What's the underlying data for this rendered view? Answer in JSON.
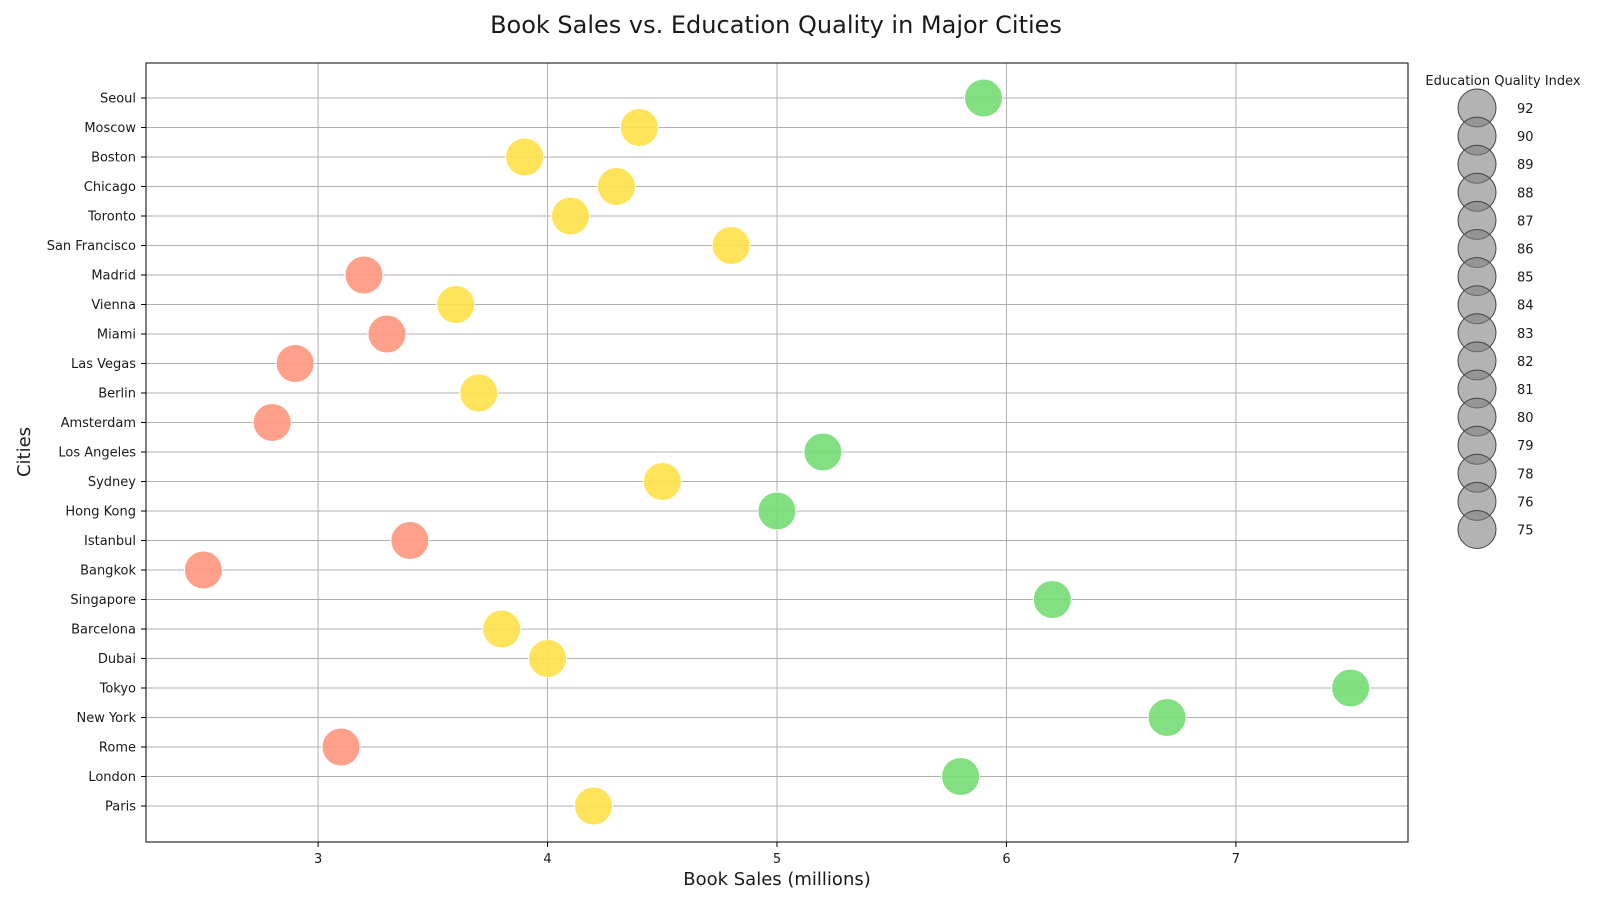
{
  "chart_data": {
    "type": "scatter",
    "title": "Book Sales vs. Education Quality in Major Cities",
    "xlabel": "Book Sales (millions)",
    "ylabel": "Cities",
    "xlim": [
      2.25,
      7.75
    ],
    "xticks": [
      3,
      4,
      5,
      6,
      7
    ],
    "grid": true,
    "categories": [
      "Paris",
      "London",
      "Rome",
      "New York",
      "Tokyo",
      "Dubai",
      "Barcelona",
      "Singapore",
      "Bangkok",
      "Istanbul",
      "Hong Kong",
      "Sydney",
      "Los Angeles",
      "Amsterdam",
      "Berlin",
      "Las Vegas",
      "Miami",
      "Vienna",
      "Madrid",
      "San Francisco",
      "Toronto",
      "Chicago",
      "Boston",
      "Moscow",
      "Seoul"
    ],
    "points": [
      {
        "city": "Paris",
        "book_sales": 4.2,
        "tier": "mid"
      },
      {
        "city": "London",
        "book_sales": 5.8,
        "tier": "high"
      },
      {
        "city": "Rome",
        "book_sales": 3.1,
        "tier": "low"
      },
      {
        "city": "New York",
        "book_sales": 6.7,
        "tier": "high"
      },
      {
        "city": "Tokyo",
        "book_sales": 7.5,
        "tier": "high"
      },
      {
        "city": "Dubai",
        "book_sales": 4.0,
        "tier": "mid"
      },
      {
        "city": "Barcelona",
        "book_sales": 3.8,
        "tier": "mid"
      },
      {
        "city": "Singapore",
        "book_sales": 6.2,
        "tier": "high"
      },
      {
        "city": "Bangkok",
        "book_sales": 2.5,
        "tier": "low"
      },
      {
        "city": "Istanbul",
        "book_sales": 3.4,
        "tier": "low"
      },
      {
        "city": "Hong Kong",
        "book_sales": 5.0,
        "tier": "high"
      },
      {
        "city": "Sydney",
        "book_sales": 4.5,
        "tier": "mid"
      },
      {
        "city": "Los Angeles",
        "book_sales": 5.2,
        "tier": "high"
      },
      {
        "city": "Amsterdam",
        "book_sales": 2.8,
        "tier": "low"
      },
      {
        "city": "Berlin",
        "book_sales": 3.7,
        "tier": "mid"
      },
      {
        "city": "Las Vegas",
        "book_sales": 2.9,
        "tier": "low"
      },
      {
        "city": "Miami",
        "book_sales": 3.3,
        "tier": "low"
      },
      {
        "city": "Vienna",
        "book_sales": 3.6,
        "tier": "mid"
      },
      {
        "city": "Madrid",
        "book_sales": 3.2,
        "tier": "low"
      },
      {
        "city": "San Francisco",
        "book_sales": 4.8,
        "tier": "mid"
      },
      {
        "city": "Toronto",
        "book_sales": 4.1,
        "tier": "mid"
      },
      {
        "city": "Chicago",
        "book_sales": 4.3,
        "tier": "mid"
      },
      {
        "city": "Boston",
        "book_sales": 3.9,
        "tier": "mid"
      },
      {
        "city": "Moscow",
        "book_sales": 4.4,
        "tier": "mid"
      },
      {
        "city": "Seoul",
        "book_sales": 5.9,
        "tier": "high"
      }
    ],
    "tier_colors": {
      "high": "#77dd77",
      "mid": "#ffe14d",
      "low": "#ff9980"
    },
    "legend": {
      "title": "Education Quality Index",
      "placement": "outside-right-top",
      "entries": [
        "92",
        "90",
        "89",
        "88",
        "87",
        "86",
        "85",
        "84",
        "83",
        "82",
        "81",
        "80",
        "79",
        "78",
        "76",
        "75"
      ],
      "marker_color": "#808080"
    }
  }
}
